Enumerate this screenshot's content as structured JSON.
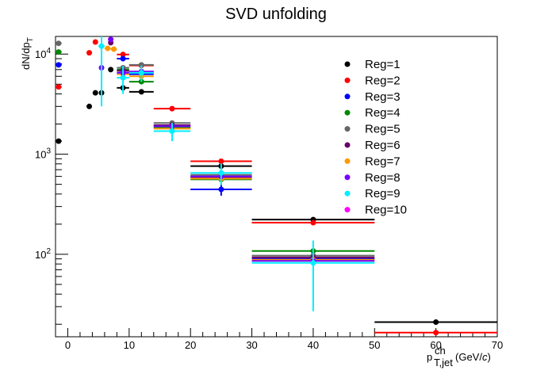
{
  "chart_data": {
    "type": "scatter",
    "title": "SVD unfolding",
    "ylabel_main": "dN/dp",
    "ylabel_sub": "T",
    "xlabel_main": "p",
    "xlabel_sup": "ch",
    "xlabel_sub": "T,jet",
    "xlabel_unit": "(GeV/",
    "xlabel_unit_italic": "c",
    "xlabel_unit_close": ")",
    "xlim": [
      -2,
      70
    ],
    "ylim": [
      15,
      15000
    ],
    "ylog": true,
    "grid": false,
    "legend_position": "top-right",
    "x_ticks": [
      {
        "value": 0,
        "label": "0"
      },
      {
        "value": 10,
        "label": "10"
      },
      {
        "value": 20,
        "label": "20"
      },
      {
        "value": 30,
        "label": "30"
      },
      {
        "value": 40,
        "label": "40"
      },
      {
        "value": 50,
        "label": "50"
      },
      {
        "value": 60,
        "label": "60"
      },
      {
        "value": 70,
        "label": "70"
      }
    ],
    "y_major_ticks": [
      {
        "value": 100,
        "label_base": "10",
        "label_exp": "2"
      },
      {
        "value": 1000,
        "label_base": "10",
        "label_exp": "3"
      },
      {
        "value": 10000,
        "label_base": "10",
        "label_exp": "4"
      }
    ],
    "series": [
      {
        "name": "Reg=1",
        "color": "#000000",
        "points": [
          {
            "x": -1.5,
            "y": 1350,
            "xerr": 0.5,
            "yerr": 0
          },
          {
            "x": 3.5,
            "y": 3000,
            "xerr": 0,
            "yerr": 0
          },
          {
            "x": 4.5,
            "y": 4100,
            "xerr": 0,
            "yerr": 0
          },
          {
            "x": 5.5,
            "y": 4100,
            "xerr": 0,
            "yerr": 0
          },
          {
            "x": 7,
            "y": 7000,
            "xerr": 0,
            "yerr": 0
          },
          {
            "x": 9,
            "y": 4600,
            "xerr": 1,
            "yerr": 0
          },
          {
            "x": 12,
            "y": 4200,
            "xerr": 2,
            "yerr": 0
          },
          {
            "x": 25,
            "y": 760,
            "xerr": 5,
            "yerr": 0
          },
          {
            "x": 40,
            "y": 222,
            "xerr": 10,
            "yerr": 0
          },
          {
            "x": 60,
            "y": 21,
            "xerr": 10,
            "yerr": 0
          }
        ]
      },
      {
        "name": "Reg=2",
        "color": "#ff0000",
        "points": [
          {
            "x": -1.5,
            "y": 4700,
            "xerr": 0.5,
            "yerr": 0
          },
          {
            "x": 3.5,
            "y": 10300,
            "xerr": 0,
            "yerr": 0
          },
          {
            "x": 4.5,
            "y": 13200,
            "xerr": 0,
            "yerr": 0
          },
          {
            "x": 9,
            "y": 9900,
            "xerr": 1,
            "yerr": 0
          },
          {
            "x": 12,
            "y": 7700,
            "xerr": 2,
            "yerr": 0
          },
          {
            "x": 17,
            "y": 2850,
            "xerr": 3,
            "yerr": 0
          },
          {
            "x": 25,
            "y": 850,
            "xerr": 5,
            "yerr": 0
          },
          {
            "x": 40,
            "y": 207,
            "xerr": 10,
            "yerr": 0
          },
          {
            "x": 60,
            "y": 16.5,
            "xerr": 10,
            "yerr": 0
          }
        ]
      },
      {
        "name": "Reg=3",
        "color": "#0000ff",
        "points": [
          {
            "x": -1.5,
            "y": 7800,
            "xerr": 0.5,
            "yerr": 0
          },
          {
            "x": 9,
            "y": 9000,
            "xerr": 1,
            "yerr": 0
          },
          {
            "x": 12,
            "y": 6300,
            "xerr": 2,
            "yerr": 0
          },
          {
            "x": 25,
            "y": 445,
            "xerr": 5,
            "yerr": 60
          },
          {
            "x": 40,
            "y": 90,
            "xerr": 10,
            "yerr": 0
          }
        ]
      },
      {
        "name": "Reg=4",
        "color": "#008800",
        "points": [
          {
            "x": -1.5,
            "y": 10500,
            "xerr": 0.5,
            "yerr": 0
          },
          {
            "x": 9,
            "y": 7000,
            "xerr": 1,
            "yerr": 0
          },
          {
            "x": 12,
            "y": 5300,
            "xerr": 2,
            "yerr": 0
          },
          {
            "x": 17,
            "y": 1850,
            "xerr": 3,
            "yerr": 0
          },
          {
            "x": 25,
            "y": 560,
            "xerr": 5,
            "yerr": 0
          },
          {
            "x": 40,
            "y": 108,
            "xerr": 10,
            "yerr": 0
          }
        ]
      },
      {
        "name": "Reg=5",
        "color": "#666666",
        "points": [
          {
            "x": -1.5,
            "y": 12800,
            "xerr": 0.5,
            "yerr": 0
          },
          {
            "x": 9,
            "y": 7300,
            "xerr": 1,
            "yerr": 0
          },
          {
            "x": 12,
            "y": 7800,
            "xerr": 2,
            "yerr": 0
          },
          {
            "x": 17,
            "y": 2050,
            "xerr": 3,
            "yerr": 0
          },
          {
            "x": 25,
            "y": 620,
            "xerr": 5,
            "yerr": 0
          },
          {
            "x": 40,
            "y": 97,
            "xerr": 10,
            "yerr": 0
          }
        ]
      },
      {
        "name": "Reg=6",
        "color": "#660066",
        "points": [
          {
            "x": 7,
            "y": 13000,
            "xerr": 0,
            "yerr": 0
          },
          {
            "x": 9,
            "y": 6800,
            "xerr": 1,
            "yerr": 0
          },
          {
            "x": 12,
            "y": 6600,
            "xerr": 2,
            "yerr": 0
          },
          {
            "x": 17,
            "y": 1950,
            "xerr": 3,
            "yerr": 0
          },
          {
            "x": 25,
            "y": 590,
            "xerr": 5,
            "yerr": 0
          },
          {
            "x": 40,
            "y": 93,
            "xerr": 10,
            "yerr": 0
          }
        ]
      },
      {
        "name": "Reg=7",
        "color": "#ff9900",
        "points": [
          {
            "x": 6.5,
            "y": 11400,
            "xerr": 0.5,
            "yerr": 0
          },
          {
            "x": 7.5,
            "y": 11200,
            "xerr": 0.5,
            "yerr": 0
          },
          {
            "x": 9,
            "y": 6300,
            "xerr": 1,
            "yerr": 0
          },
          {
            "x": 12,
            "y": 6000,
            "xerr": 2,
            "yerr": 0
          },
          {
            "x": 17,
            "y": 1800,
            "xerr": 3,
            "yerr": 0
          },
          {
            "x": 25,
            "y": 570,
            "xerr": 5,
            "yerr": 0
          },
          {
            "x": 40,
            "y": 88,
            "xerr": 10,
            "yerr": 0
          }
        ]
      },
      {
        "name": "Reg=8",
        "color": "#7700ff",
        "points": [
          {
            "x": 5.5,
            "y": 7300,
            "xerr": 0,
            "yerr": 0
          },
          {
            "x": 7,
            "y": 14000,
            "xerr": 0,
            "yerr": 0
          },
          {
            "x": 9,
            "y": 6500,
            "xerr": 1,
            "yerr": 0
          },
          {
            "x": 12,
            "y": 6700,
            "xerr": 2,
            "yerr": 0
          },
          {
            "x": 17,
            "y": 1900,
            "xerr": 3,
            "yerr": 0
          },
          {
            "x": 25,
            "y": 600,
            "xerr": 5,
            "yerr": 0
          },
          {
            "x": 40,
            "y": 86,
            "xerr": 10,
            "yerr": 0
          }
        ]
      },
      {
        "name": "Reg=9",
        "color": "#00eeff",
        "points": [
          {
            "x": 5.5,
            "y": 12000,
            "xerr": 0.5,
            "yerr": 9000
          },
          {
            "x": 9,
            "y": 5800,
            "xerr": 1,
            "yerr": 1800
          },
          {
            "x": 12,
            "y": 6500,
            "xerr": 2,
            "yerr": 1200
          },
          {
            "x": 17,
            "y": 1700,
            "xerr": 3,
            "yerr": 350
          },
          {
            "x": 25,
            "y": 650,
            "xerr": 5,
            "yerr": 160
          },
          {
            "x": 40,
            "y": 82,
            "xerr": 10,
            "yerr": 55
          }
        ]
      },
      {
        "name": "Reg=10",
        "color": "#ff00ff",
        "points": []
      }
    ]
  }
}
